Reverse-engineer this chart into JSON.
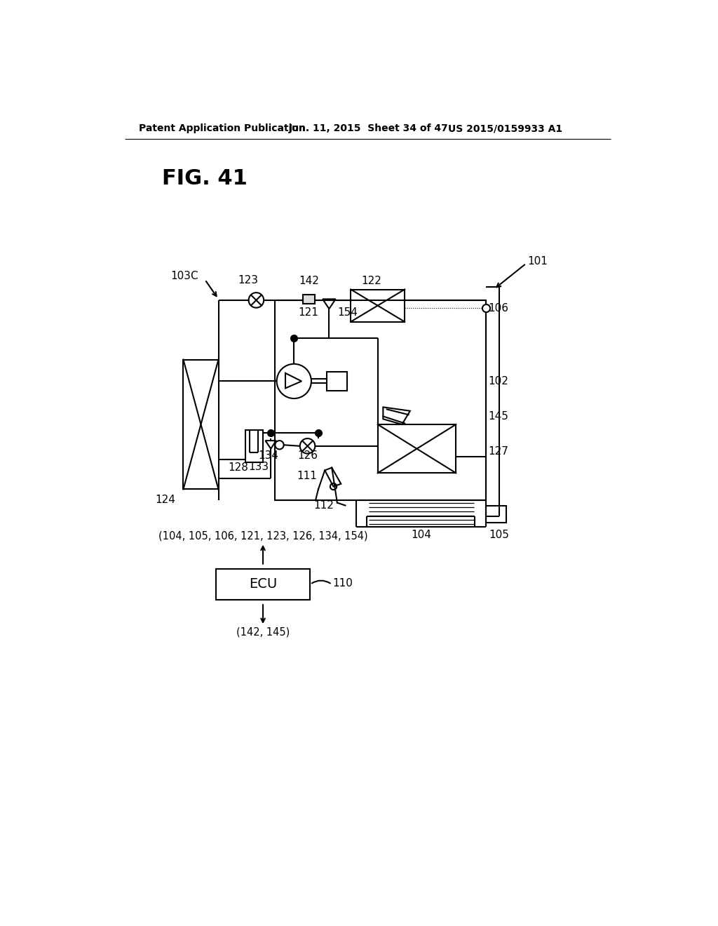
{
  "title": "FIG. 41",
  "header_left": "Patent Application Publication",
  "header_center": "Jun. 11, 2015  Sheet 34 of 47",
  "header_right": "US 2015/0159933 A1",
  "bg_color": "#ffffff",
  "line_color": "#000000",
  "label_101": "101",
  "label_102": "102",
  "label_103C": "103C",
  "label_104": "104",
  "label_105": "105",
  "label_106": "106",
  "label_110": "110",
  "label_111": "111",
  "label_112": "112",
  "label_121": "121",
  "label_122": "122",
  "label_123": "123",
  "label_124": "124",
  "label_126": "126",
  "label_127": "127",
  "label_128": "128",
  "label_133": "133",
  "label_134": "134",
  "label_142": "142",
  "label_145": "145",
  "label_154": "154",
  "ecu_label": "ECU",
  "signal_upper": "(104, 105, 106, 121, 123, 126, 134, 154)",
  "signal_lower": "(142, 145)"
}
